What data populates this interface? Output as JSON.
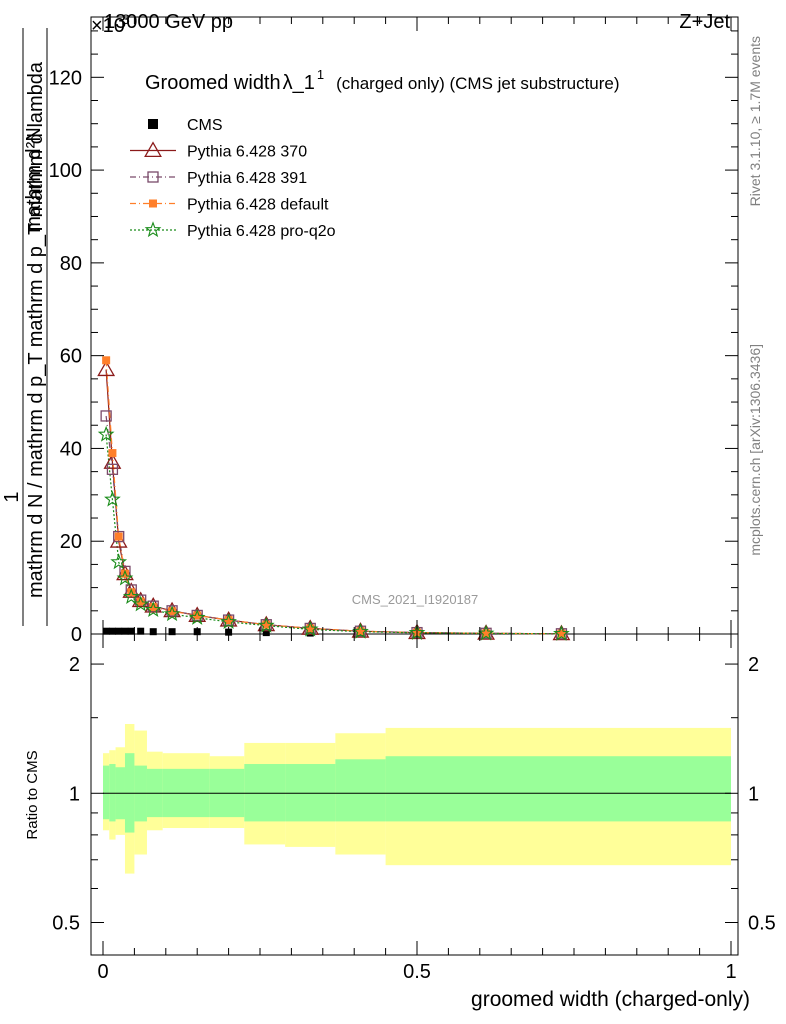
{
  "header": {
    "energy": "13000 GeV pp",
    "process": "Z+Jet",
    "exp_label": "×10",
    "exp_value": "3"
  },
  "side_text": {
    "rivet": "Rivet 3.1.10, ≥ 1.7M events",
    "mcplots": "mcplots.cern.ch [arXiv:1306.3436]"
  },
  "watermark": "CMS_2021_I1920187",
  "chart_data": [
    {
      "type": "line",
      "title": "Groomed width λ_1^1",
      "title_main": "Groomed width",
      "title_lambda": "λ_1",
      "title_sup": "1",
      "title_sub": "(charged only) (CMS jet substructure)",
      "ylabel_numerator": "mathrm d²N",
      "ylabel_denominator": "mathrm d N / mathrm d p_T mathrm d p_T mathrm d lambda",
      "ylabel_prefix": "1",
      "xlim": [
        0,
        1
      ],
      "ylim": [
        0,
        133
      ],
      "y_unit_note": "values ×10^3",
      "yticks": [
        0,
        20,
        40,
        60,
        80,
        100,
        120
      ],
      "ytick_labels": [
        "0",
        "20",
        "40",
        "60",
        "80",
        "100",
        "120"
      ],
      "grid": false,
      "legend_position": "top-left",
      "cms_x": [
        0.005,
        0.015,
        0.025,
        0.035,
        0.045,
        0.06,
        0.08,
        0.11,
        0.15,
        0.2,
        0.26,
        0.33,
        0.41,
        0.5,
        0.61,
        0.73
      ],
      "cms_y": [
        0.6,
        0.6,
        0.6,
        0.6,
        0.6,
        0.6,
        0.5,
        0.5,
        0.5,
        0.4,
        0.3,
        0.2,
        0.1,
        0.1,
        0.05,
        0.02
      ],
      "series": [
        {
          "name": "CMS",
          "color": "#000000",
          "marker": "square-filled",
          "dash": "none",
          "x": [
            0.005,
            0.015,
            0.025,
            0.035,
            0.045,
            0.06,
            0.08,
            0.11,
            0.15,
            0.2,
            0.26,
            0.33,
            0.41,
            0.5,
            0.61,
            0.73
          ],
          "y": [
            0.6,
            0.6,
            0.6,
            0.6,
            0.6,
            0.6,
            0.5,
            0.5,
            0.5,
            0.4,
            0.3,
            0.2,
            0.1,
            0.1,
            0.05,
            0.02
          ]
        },
        {
          "name": "Pythia 6.428 370",
          "color": "#8b1a1a",
          "marker": "triangle-open",
          "dash": "none",
          "x": [
            0.005,
            0.015,
            0.025,
            0.035,
            0.045,
            0.06,
            0.08,
            0.11,
            0.15,
            0.2,
            0.26,
            0.33,
            0.41,
            0.5,
            0.61,
            0.73
          ],
          "y": [
            57,
            37,
            20,
            13,
            9.2,
            7.2,
            6.0,
            5.0,
            4.0,
            3.0,
            2.0,
            1.2,
            0.6,
            0.3,
            0.15,
            0.05
          ]
        },
        {
          "name": "Pythia 6.428 391",
          "color": "#7a4a6a",
          "marker": "square-open",
          "dash": "6,3,1,3",
          "x": [
            0.005,
            0.015,
            0.025,
            0.035,
            0.045,
            0.06,
            0.08,
            0.11,
            0.15,
            0.2,
            0.26,
            0.33,
            0.41,
            0.5,
            0.61,
            0.73
          ],
          "y": [
            47,
            35.5,
            21,
            13.5,
            9.5,
            7.3,
            6.0,
            5.0,
            4.0,
            3.0,
            2.0,
            1.2,
            0.6,
            0.3,
            0.15,
            0.05
          ]
        },
        {
          "name": "Pythia 6.428 default",
          "color": "#ff7f2a",
          "marker": "square-filled",
          "dash": "6,3,1,3",
          "x": [
            0.005,
            0.015,
            0.025,
            0.035,
            0.045,
            0.06,
            0.08,
            0.11,
            0.15,
            0.2,
            0.26,
            0.33,
            0.41,
            0.5,
            0.61,
            0.73
          ],
          "y": [
            59,
            39,
            21,
            13,
            9.0,
            7.0,
            5.8,
            4.9,
            4.0,
            3.0,
            2.0,
            1.2,
            0.6,
            0.3,
            0.15,
            0.05
          ]
        },
        {
          "name": "Pythia 6.428 pro-q2o",
          "color": "#1a8c1a",
          "marker": "star",
          "dash": "2,2",
          "x": [
            0.005,
            0.015,
            0.025,
            0.035,
            0.045,
            0.06,
            0.08,
            0.11,
            0.15,
            0.2,
            0.26,
            0.33,
            0.41,
            0.5,
            0.61,
            0.73
          ],
          "y": [
            43,
            29,
            15.5,
            12,
            8.0,
            6.4,
            5.2,
            4.3,
            3.5,
            2.6,
            1.8,
            1.0,
            0.5,
            0.25,
            0.12,
            0.04
          ]
        }
      ]
    },
    {
      "type": "area",
      "ylabel": "Ratio to CMS",
      "xlabel": "groomed width (charged-only)",
      "xlim": [
        0,
        1
      ],
      "ylim": [
        0.42,
        2.35
      ],
      "log_y": true,
      "yticks": [
        0.5,
        1,
        2
      ],
      "ytick_labels": [
        "0.5",
        "1",
        "2"
      ],
      "xticks": [
        0,
        0.5,
        1
      ],
      "xtick_labels": [
        "0",
        "0.5",
        "1"
      ],
      "reference_line": 1,
      "band_colors": {
        "stat": "#99ff99",
        "total": "#ffff99"
      },
      "bins": [
        {
          "x0": 0.0,
          "x1": 0.01,
          "stat": [
            0.87,
            1.16
          ],
          "total": [
            0.82,
            1.24
          ]
        },
        {
          "x0": 0.01,
          "x1": 0.02,
          "stat": [
            0.86,
            1.17
          ],
          "total": [
            0.78,
            1.26
          ]
        },
        {
          "x0": 0.02,
          "x1": 0.035,
          "stat": [
            0.87,
            1.15
          ],
          "total": [
            0.8,
            1.28
          ]
        },
        {
          "x0": 0.035,
          "x1": 0.05,
          "stat": [
            0.81,
            1.24
          ],
          "total": [
            0.65,
            1.45
          ]
        },
        {
          "x0": 0.05,
          "x1": 0.07,
          "stat": [
            0.86,
            1.16
          ],
          "total": [
            0.72,
            1.4
          ]
        },
        {
          "x0": 0.07,
          "x1": 0.095,
          "stat": [
            0.88,
            1.14
          ],
          "total": [
            0.82,
            1.25
          ]
        },
        {
          "x0": 0.095,
          "x1": 0.17,
          "stat": [
            0.88,
            1.14
          ],
          "total": [
            0.83,
            1.24
          ]
        },
        {
          "x0": 0.17,
          "x1": 0.225,
          "stat": [
            0.88,
            1.14
          ],
          "total": [
            0.83,
            1.22
          ]
        },
        {
          "x0": 0.225,
          "x1": 0.29,
          "stat": [
            0.86,
            1.17
          ],
          "total": [
            0.76,
            1.31
          ]
        },
        {
          "x0": 0.29,
          "x1": 0.37,
          "stat": [
            0.86,
            1.17
          ],
          "total": [
            0.75,
            1.31
          ]
        },
        {
          "x0": 0.37,
          "x1": 0.45,
          "stat": [
            0.86,
            1.2
          ],
          "total": [
            0.72,
            1.38
          ]
        },
        {
          "x0": 0.45,
          "x1": 1.0,
          "stat": [
            0.86,
            1.22
          ],
          "total": [
            0.68,
            1.42
          ]
        }
      ]
    }
  ]
}
